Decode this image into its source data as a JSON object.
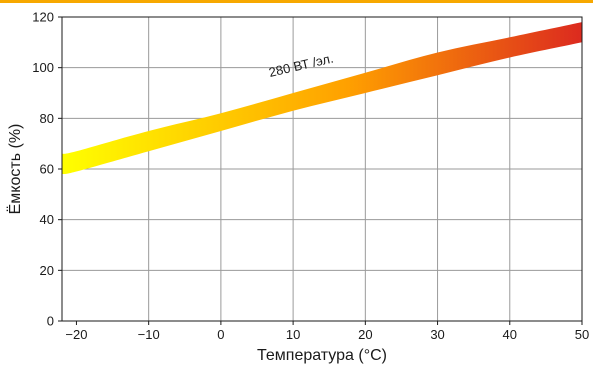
{
  "chart_data": {
    "type": "area",
    "xlabel": "Температура (°C)",
    "ylabel": "Ёмкость (%)",
    "xlim": [
      -22,
      50
    ],
    "ylim": [
      0,
      120
    ],
    "x_ticks": [
      -20,
      -10,
      0,
      10,
      20,
      30,
      40,
      50
    ],
    "x_tick_labels": [
      "−20",
      "−10",
      "0",
      "10",
      "20",
      "30",
      "40",
      "50"
    ],
    "y_ticks": [
      0,
      20,
      40,
      60,
      80,
      100,
      120
    ],
    "y_tick_labels": [
      "0",
      "20",
      "40",
      "60",
      "80",
      "100",
      "120"
    ],
    "grid": true,
    "band": {
      "label": "280 ВТ /эл.",
      "x": [
        -22,
        -20,
        -10,
        0,
        10,
        20,
        30,
        40,
        50
      ],
      "upper": [
        66,
        67,
        75,
        82,
        90,
        98,
        106,
        112,
        118
      ],
      "lower": [
        58,
        59,
        67,
        75,
        83,
        90,
        97,
        104,
        110
      ],
      "color_start": "#ffff00",
      "color_mid": "#ffa000",
      "color_end": "#dc2a1f"
    },
    "accent_color": "#f7a800"
  }
}
